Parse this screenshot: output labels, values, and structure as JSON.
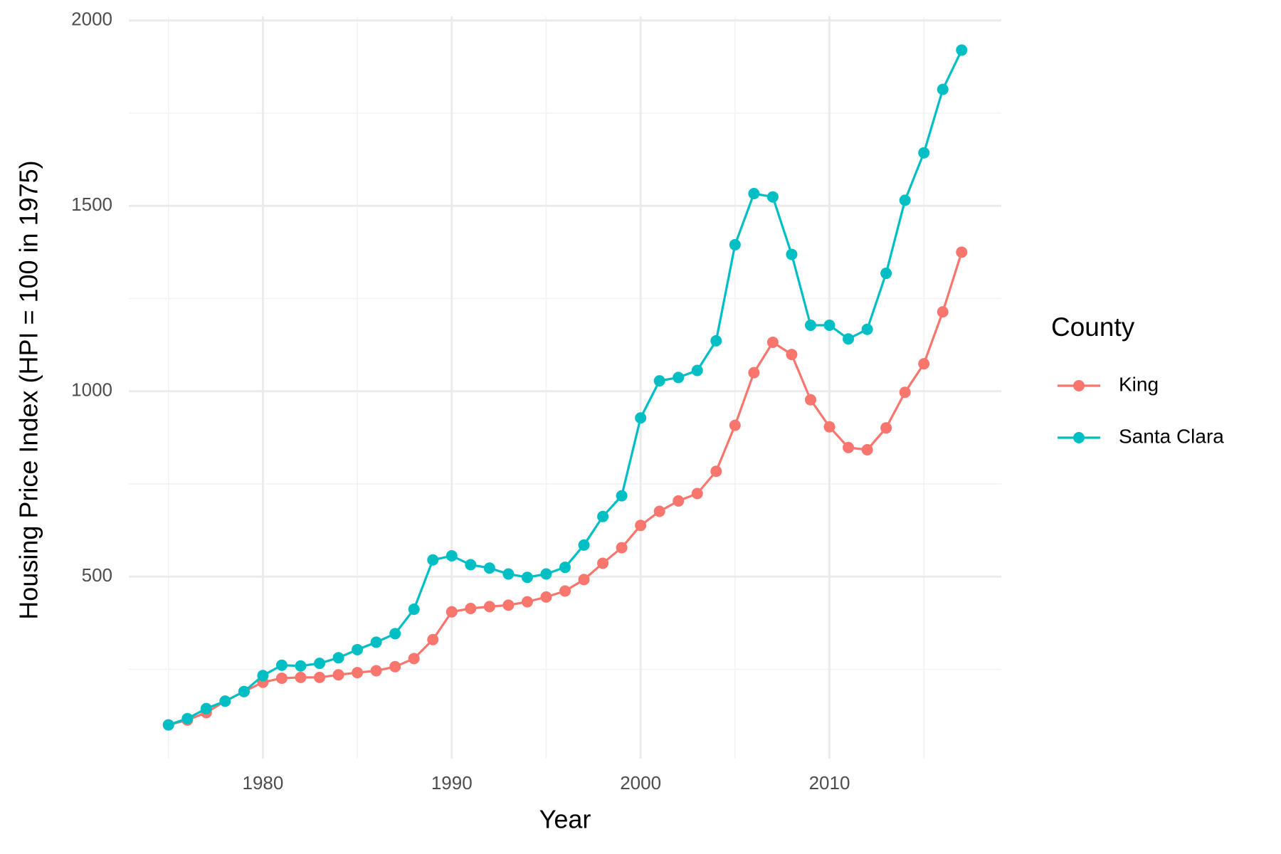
{
  "chart_data": {
    "type": "line",
    "x_label": "Year",
    "y_label": "Housing Price Index (HPI = 100 in 1975)",
    "legend_title": "County",
    "legend_position": "right",
    "x": [
      1975,
      1976,
      1977,
      1978,
      1979,
      1980,
      1981,
      1982,
      1983,
      1984,
      1985,
      1986,
      1987,
      1988,
      1989,
      1990,
      1991,
      1992,
      1993,
      1994,
      1995,
      1996,
      1997,
      1998,
      1999,
      2000,
      2001,
      2002,
      2003,
      2004,
      2005,
      2006,
      2007,
      2008,
      2009,
      2010,
      2011,
      2012,
      2013,
      2014,
      2015,
      2016,
      2017
    ],
    "series": [
      {
        "name": "King",
        "color": "#F8766D",
        "values": [
          100,
          113,
          133,
          164,
          190,
          215,
          226,
          228,
          228,
          235,
          241,
          246,
          257,
          279,
          330,
          405,
          414,
          419,
          423,
          432,
          445,
          461,
          492,
          536,
          578,
          638,
          676,
          704,
          724,
          784,
          908,
          1050,
          1132,
          1099,
          977,
          904,
          848,
          842,
          901,
          997,
          1074,
          1214,
          1375
        ]
      },
      {
        "name": "Santa Clara",
        "color": "#00BFC4",
        "values": [
          100,
          117,
          144,
          164,
          190,
          233,
          261,
          259,
          266,
          281,
          303,
          323,
          346,
          412,
          545,
          556,
          532,
          523,
          507,
          498,
          507,
          525,
          585,
          662,
          718,
          928,
          1028,
          1037,
          1056,
          1136,
          1395,
          1533,
          1524,
          1369,
          1178,
          1178,
          1141,
          1167,
          1318,
          1515,
          1643,
          1814,
          1920
        ]
      }
    ],
    "xlim": [
      1972.9,
      2019.1
    ],
    "ylim": [
      9,
      2011
    ],
    "xticks": [
      1980,
      1990,
      2000,
      2010
    ],
    "yticks": [
      500,
      1000,
      1500,
      2000
    ],
    "minor_xticks": [
      1975,
      1985,
      1995,
      2005,
      2015
    ],
    "minor_yticks": [
      250,
      750,
      1250,
      1750
    ],
    "grid": true,
    "markers": true
  }
}
